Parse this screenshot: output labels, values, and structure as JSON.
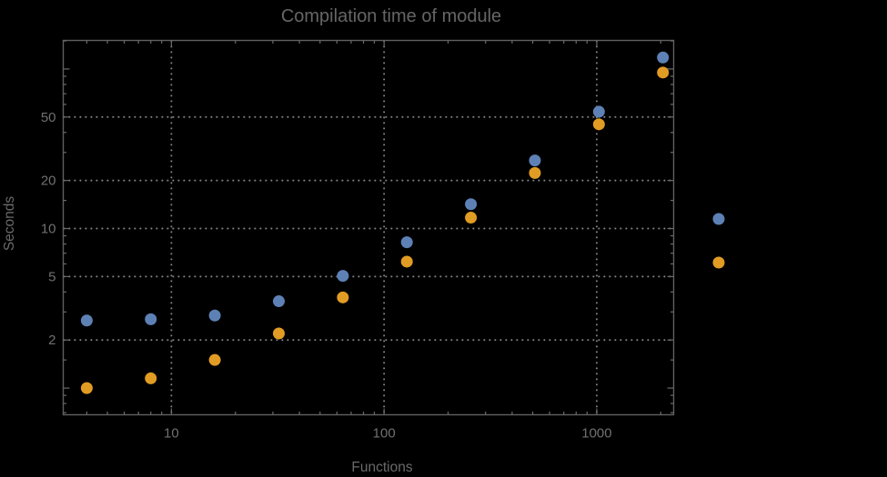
{
  "page": {
    "background": "#000000"
  },
  "chart_data": {
    "type": "scatter",
    "title": "Compilation time of module",
    "xlabel": "Functions",
    "ylabel": "Seconds",
    "x_scale": "log",
    "y_scale": "log",
    "xlim": [
      3.1,
      2300
    ],
    "ylim": [
      0.68,
      151
    ],
    "grid": {
      "show": true,
      "style": "dotted",
      "on": "major-ticks",
      "color": "#8c8c8c"
    },
    "x": [
      4,
      8,
      16,
      32,
      64,
      128,
      256,
      512,
      1024,
      2048
    ],
    "series": [
      {
        "name": "series-1-blue",
        "color": "#5e81b5",
        "values": [
          2.65,
          2.7,
          2.85,
          3.5,
          5.05,
          8.2,
          14.2,
          26.7,
          54,
          118
        ]
      },
      {
        "name": "series-2-orange",
        "color": "#e19c24",
        "values": [
          1.0,
          1.15,
          1.5,
          2.2,
          3.7,
          6.2,
          11.7,
          22.3,
          45,
          95
        ]
      }
    ],
    "x_axis": {
      "major_ticks": [
        {
          "value": 10,
          "label": "10"
        },
        {
          "value": 100,
          "label": "100"
        },
        {
          "value": 1000,
          "label": "1000"
        }
      ],
      "minor_ticks": [
        4,
        5,
        6,
        7,
        8,
        9,
        20,
        30,
        40,
        50,
        60,
        70,
        80,
        90,
        200,
        300,
        400,
        500,
        600,
        700,
        800,
        900,
        2000
      ]
    },
    "y_axis": {
      "major_ticks": [
        {
          "value": 2,
          "label": "2"
        },
        {
          "value": 5,
          "label": "5"
        },
        {
          "value": 10,
          "label": "10"
        },
        {
          "value": 20,
          "label": "20"
        },
        {
          "value": 50,
          "label": "50"
        }
      ],
      "unlabeled_major_ticks": [
        1,
        100
      ],
      "minor_ticks": [
        0.7,
        0.8,
        0.9,
        1.5,
        3,
        4,
        6,
        7,
        8,
        9,
        15,
        30,
        40,
        60,
        70,
        80,
        90,
        150
      ]
    },
    "legend": {
      "position": "right-outside-middle",
      "labels_visible": false,
      "markers": [
        {
          "series": 0
        },
        {
          "series": 1
        }
      ]
    },
    "colors": {
      "background": "#000000",
      "frame": "#606060",
      "tick": "#6a6a6a",
      "grid": "#8c8c8c",
      "text": "#6e6e6e"
    },
    "marker_radius": 6.5
  }
}
